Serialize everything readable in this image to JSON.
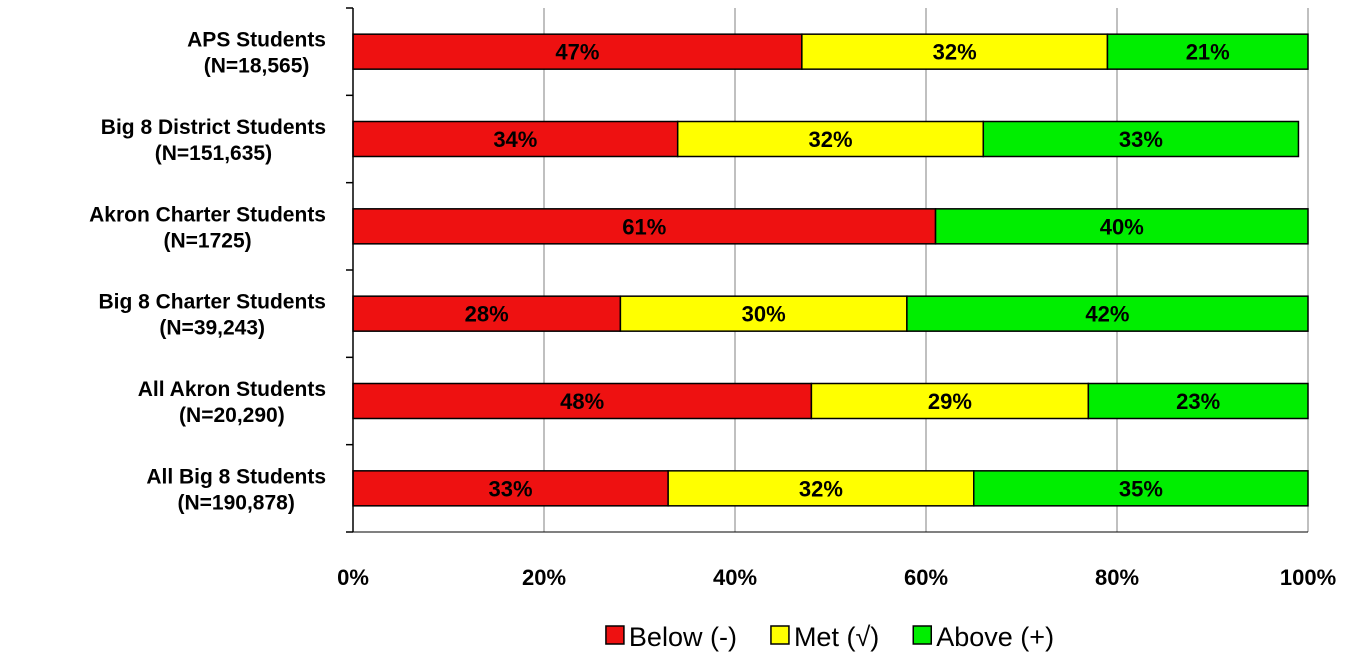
{
  "chart_data": {
    "type": "bar",
    "orientation": "horizontal",
    "stacked": "percent",
    "title": "",
    "xlabel": "",
    "ylabel": "",
    "xlim": [
      0,
      100
    ],
    "x_ticks": [
      "0%",
      "20%",
      "40%",
      "60%",
      "80%",
      "100%"
    ],
    "grid": "vertical",
    "legend_position": "bottom",
    "categories": [
      [
        "APS Students",
        "(N=18,565)"
      ],
      [
        "Big 8 District Students",
        "(N=151,635)"
      ],
      [
        "Akron Charter Students",
        "(N=1725)"
      ],
      [
        "Big 8 Charter Students",
        "(N=39,243)"
      ],
      [
        "All Akron Students",
        "(N=20,290)"
      ],
      [
        "All Big 8 Students",
        "(N=190,878)"
      ]
    ],
    "series": [
      {
        "name": "Below (-)",
        "color": "#ee1111",
        "values": [
          47,
          34,
          61,
          28,
          48,
          33
        ],
        "labels": [
          "47%",
          "34%",
          "61%",
          "28%",
          "48%",
          "33%"
        ]
      },
      {
        "name": "Met (√)",
        "color": "#ffff00",
        "values": [
          32,
          32,
          0,
          30,
          29,
          32
        ],
        "labels": [
          "32%",
          "32%",
          "",
          "30%",
          "29%",
          "32%"
        ]
      },
      {
        "name": "Above (+)",
        "color": "#00ee00",
        "values": [
          21,
          33,
          40,
          42,
          23,
          35
        ],
        "labels": [
          "21%",
          "33%",
          "40%",
          "42%",
          "23%",
          "35%"
        ]
      }
    ]
  }
}
